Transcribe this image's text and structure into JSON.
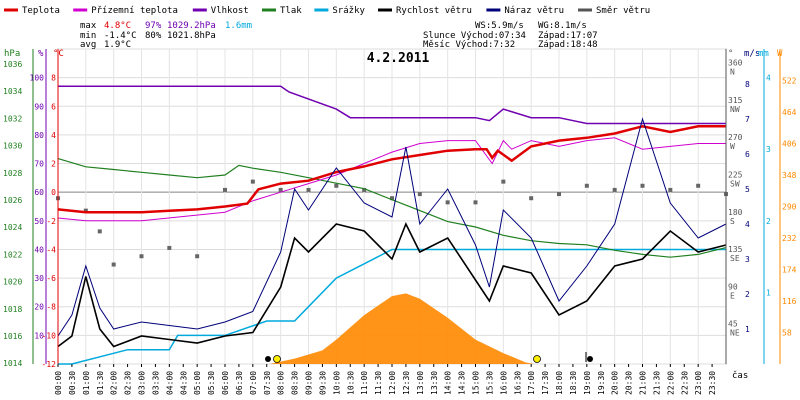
{
  "legend": [
    {
      "label": "Teplota",
      "color": "#e00000"
    },
    {
      "label": "Přízemní teplota",
      "color": "#d000d0"
    },
    {
      "label": "Vlhkost",
      "color": "#7000b0"
    },
    {
      "label": "Tlak",
      "color": "#208020"
    },
    {
      "label": "Srážky",
      "color": "#00aadd"
    },
    {
      "label": "Rychlost větru",
      "color": "#000000"
    },
    {
      "label": "Náraz větru",
      "color": "#00007a"
    },
    {
      "label": "Směr větru",
      "color": "#555555"
    }
  ],
  "stats": {
    "max_label": "max",
    "max_temp": "4.8°C",
    "max_hum": "97%",
    "max_press": "1029.2hPa",
    "max_rain": "1.6mm",
    "min_label": "min",
    "min_temp": "-1.4°C",
    "min_hum": "80%",
    "min_press": "1021.8hPa",
    "avg_label": "avg",
    "avg_temp": "1.9°C"
  },
  "wind_info": {
    "ws": "WS:5.9m/s",
    "wg": "WG:8.1m/s",
    "sun_rise": "Slunce Východ:07:34",
    "sun_set": "Západ:17:07",
    "moon_rise": "Měsíc  Východ:7:32",
    "moon_set": "Západ:18:48"
  },
  "title": "4.2.2011",
  "axes": {
    "hpa_title": "hPa",
    "pct_title": "%",
    "c_title": "°C",
    "deg_title": "°",
    "ms_title": "m/s",
    "mm_title": "mm",
    "w_title": "W",
    "x_title": "čas",
    "hpa_ticks": [
      "1036",
      "1034",
      "1032",
      "1030",
      "1028",
      "1026",
      "1024",
      "1022",
      "1020",
      "1018",
      "1016",
      "1014"
    ],
    "pct_ticks": [
      "100",
      "90",
      "80",
      "70",
      "60",
      "50",
      "40",
      "30",
      "20",
      "10"
    ],
    "c_ticks": [
      "8",
      "6",
      "4",
      "2",
      "0",
      "-2",
      "-4",
      "-6",
      "-8",
      "-10",
      "-12"
    ],
    "dir_ticks": [
      "360",
      "315",
      "270",
      "225",
      "180",
      "135",
      "90",
      "45"
    ],
    "dir_labels": [
      "N",
      "NW",
      "W",
      "SW",
      "S",
      "SE",
      "E",
      "NE"
    ],
    "ms_ticks": [
      "8",
      "7",
      "6",
      "5",
      "4",
      "3",
      "2",
      "1"
    ],
    "mm_ticks": [
      "4",
      "3",
      "2",
      "1"
    ],
    "w_ticks": [
      "522",
      "464",
      "406",
      "348",
      "290",
      "232",
      "174",
      "116",
      "58"
    ],
    "time_labels": [
      "00:00",
      "00:30",
      "01:00",
      "01:30",
      "02:00",
      "02:30",
      "03:00",
      "03:30",
      "04:00",
      "04:30",
      "05:00",
      "05:30",
      "06:00",
      "06:30",
      "07:00",
      "07:30",
      "08:00",
      "08:30",
      "09:00",
      "09:30",
      "10:00",
      "10:30",
      "11:00",
      "11:30",
      "12:00",
      "12:30",
      "13:00",
      "13:30",
      "14:00",
      "14:30",
      "15:00",
      "15:30",
      "16:00",
      "16:30",
      "17:00",
      "17:30",
      "18:00",
      "18:30",
      "19:00",
      "19:30",
      "20:00",
      "20:30",
      "21:00",
      "21:30",
      "22:00",
      "22:30",
      "23:00",
      "23:30"
    ]
  },
  "chart_data": {
    "type": "line",
    "title": "4.2.2011",
    "xlabel": "čas",
    "x_range_hours": [
      0,
      24
    ],
    "series": [
      {
        "name": "Teplota",
        "unit": "°C",
        "points": [
          [
            0,
            -1.2
          ],
          [
            1,
            -1.4
          ],
          [
            2,
            -1.4
          ],
          [
            3,
            -1.4
          ],
          [
            4,
            -1.3
          ],
          [
            5,
            -1.2
          ],
          [
            6,
            -1.0
          ],
          [
            6.8,
            -0.8
          ],
          [
            7.2,
            0.2
          ],
          [
            8,
            0.6
          ],
          [
            9,
            0.8
          ],
          [
            10,
            1.4
          ],
          [
            11,
            1.8
          ],
          [
            12,
            2.3
          ],
          [
            13,
            2.6
          ],
          [
            14,
            2.9
          ],
          [
            15,
            3.0
          ],
          [
            15.4,
            3.0
          ],
          [
            15.6,
            2.4
          ],
          [
            15.8,
            2.9
          ],
          [
            16.3,
            2.2
          ],
          [
            17,
            3.2
          ],
          [
            18,
            3.6
          ],
          [
            19,
            3.8
          ],
          [
            20,
            4.1
          ],
          [
            21,
            4.6
          ],
          [
            22,
            4.2
          ],
          [
            23,
            4.6
          ],
          [
            24,
            4.6
          ]
        ]
      },
      {
        "name": "Přízemní teplota",
        "unit": "°C",
        "points": [
          [
            0,
            -1.8
          ],
          [
            1,
            -2.0
          ],
          [
            3,
            -2.0
          ],
          [
            6,
            -1.4
          ],
          [
            7,
            -0.6
          ],
          [
            8,
            0.0
          ],
          [
            9,
            0.6
          ],
          [
            10,
            1.2
          ],
          [
            11,
            2.0
          ],
          [
            12,
            2.8
          ],
          [
            13,
            3.4
          ],
          [
            14,
            3.6
          ],
          [
            15,
            3.6
          ],
          [
            15.6,
            2.0
          ],
          [
            16,
            3.6
          ],
          [
            16.3,
            3.0
          ],
          [
            17,
            3.6
          ],
          [
            18,
            3.2
          ],
          [
            19,
            3.6
          ],
          [
            20,
            3.8
          ],
          [
            21,
            3.0
          ],
          [
            22,
            3.2
          ],
          [
            23,
            3.4
          ],
          [
            24,
            3.4
          ]
        ]
      },
      {
        "name": "Vlhkost",
        "unit": "%",
        "points": [
          [
            0,
            97
          ],
          [
            4,
            97
          ],
          [
            8,
            97
          ],
          [
            8.3,
            95
          ],
          [
            10,
            89
          ],
          [
            10.5,
            86
          ],
          [
            12,
            86
          ],
          [
            15,
            86
          ],
          [
            15.5,
            85
          ],
          [
            16,
            89
          ],
          [
            17,
            86
          ],
          [
            18,
            86
          ],
          [
            19,
            84
          ],
          [
            24,
            84
          ]
        ]
      },
      {
        "name": "Tlak",
        "unit": "hPa",
        "points": [
          [
            0,
            1029.0
          ],
          [
            1,
            1028.4
          ],
          [
            2,
            1028.2
          ],
          [
            3,
            1028.0
          ],
          [
            4,
            1027.8
          ],
          [
            5,
            1027.6
          ],
          [
            6,
            1027.8
          ],
          [
            6.5,
            1028.5
          ],
          [
            7,
            1028.3
          ],
          [
            8,
            1028.0
          ],
          [
            9,
            1027.6
          ],
          [
            10,
            1027.2
          ],
          [
            11,
            1026.8
          ],
          [
            12,
            1026.0
          ],
          [
            13,
            1025.2
          ],
          [
            14,
            1024.4
          ],
          [
            15,
            1024.0
          ],
          [
            16,
            1023.4
          ],
          [
            17,
            1023.0
          ],
          [
            18,
            1022.8
          ],
          [
            19,
            1022.7
          ],
          [
            20,
            1022.3
          ],
          [
            21,
            1022.0
          ],
          [
            22,
            1021.8
          ],
          [
            23,
            1022.0
          ],
          [
            24,
            1022.5
          ]
        ]
      },
      {
        "name": "Srážky",
        "unit": "mm",
        "points": [
          [
            0,
            0
          ],
          [
            0.5,
            0
          ],
          [
            2.5,
            0.2
          ],
          [
            4,
            0.2
          ],
          [
            4.3,
            0.4
          ],
          [
            6,
            0.4
          ],
          [
            7.5,
            0.6
          ],
          [
            8.5,
            0.6
          ],
          [
            9,
            0.8
          ],
          [
            10,
            1.2
          ],
          [
            11,
            1.4
          ],
          [
            12,
            1.6
          ],
          [
            24,
            1.6
          ]
        ]
      },
      {
        "name": "Rychlost větru",
        "unit": "m/s",
        "points": [
          [
            0,
            0.5
          ],
          [
            0.5,
            0.8
          ],
          [
            1,
            2.5
          ],
          [
            1.5,
            1.0
          ],
          [
            2,
            0.5
          ],
          [
            3,
            0.8
          ],
          [
            4,
            0.7
          ],
          [
            5,
            0.6
          ],
          [
            6,
            0.8
          ],
          [
            7,
            0.9
          ],
          [
            8,
            2.2
          ],
          [
            8.5,
            3.6
          ],
          [
            9,
            3.2
          ],
          [
            10,
            4.0
          ],
          [
            11,
            3.8
          ],
          [
            12,
            3.0
          ],
          [
            12.5,
            4.0
          ],
          [
            13,
            3.2
          ],
          [
            14,
            3.6
          ],
          [
            15,
            2.4
          ],
          [
            15.5,
            1.8
          ],
          [
            16,
            2.8
          ],
          [
            17,
            2.6
          ],
          [
            18,
            1.4
          ],
          [
            19,
            1.8
          ],
          [
            20,
            2.8
          ],
          [
            21,
            3.0
          ],
          [
            22,
            3.8
          ],
          [
            23,
            3.2
          ],
          [
            24,
            3.4
          ]
        ]
      },
      {
        "name": "Náraz větru",
        "unit": "m/s",
        "points": [
          [
            0,
            0.8
          ],
          [
            0.5,
            1.4
          ],
          [
            1,
            2.8
          ],
          [
            1.5,
            1.6
          ],
          [
            2,
            1.0
          ],
          [
            3,
            1.2
          ],
          [
            4,
            1.1
          ],
          [
            5,
            1.0
          ],
          [
            6,
            1.2
          ],
          [
            7,
            1.5
          ],
          [
            8,
            3.2
          ],
          [
            8.5,
            5.0
          ],
          [
            9,
            4.4
          ],
          [
            10,
            5.6
          ],
          [
            11,
            4.6
          ],
          [
            12,
            4.2
          ],
          [
            12.5,
            6.2
          ],
          [
            13,
            4.0
          ],
          [
            14,
            5.0
          ],
          [
            15,
            3.4
          ],
          [
            15.5,
            2.2
          ],
          [
            16,
            4.4
          ],
          [
            17,
            3.6
          ],
          [
            18,
            1.8
          ],
          [
            19,
            2.8
          ],
          [
            20,
            4.0
          ],
          [
            21,
            7.0
          ],
          [
            22,
            4.6
          ],
          [
            23,
            3.6
          ],
          [
            24,
            4.0
          ]
        ]
      },
      {
        "name": "Směr větru",
        "unit": "°",
        "points": [
          [
            0,
            200
          ],
          [
            1,
            185
          ],
          [
            1.5,
            160
          ],
          [
            2,
            120
          ],
          [
            3,
            130
          ],
          [
            4,
            140
          ],
          [
            5,
            130
          ],
          [
            6,
            210
          ],
          [
            7,
            220
          ],
          [
            8,
            210
          ],
          [
            9,
            210
          ],
          [
            10,
            215
          ],
          [
            11,
            210
          ],
          [
            12,
            200
          ],
          [
            13,
            205
          ],
          [
            14,
            195
          ],
          [
            15,
            195
          ],
          [
            16,
            220
          ],
          [
            17,
            200
          ],
          [
            18,
            205
          ],
          [
            19,
            215
          ],
          [
            20,
            210
          ],
          [
            21,
            215
          ],
          [
            22,
            210
          ],
          [
            23,
            215
          ],
          [
            24,
            205
          ]
        ]
      },
      {
        "name": "W",
        "unit": "W",
        "points": [
          [
            7.6,
            0
          ],
          [
            8.5,
            10
          ],
          [
            9.5,
            25
          ],
          [
            10,
            45
          ],
          [
            11,
            90
          ],
          [
            12,
            125
          ],
          [
            12.5,
            130
          ],
          [
            13,
            120
          ],
          [
            14,
            85
          ],
          [
            15,
            45
          ],
          [
            16,
            20
          ],
          [
            16.8,
            3
          ],
          [
            17.1,
            0
          ]
        ]
      }
    ]
  }
}
